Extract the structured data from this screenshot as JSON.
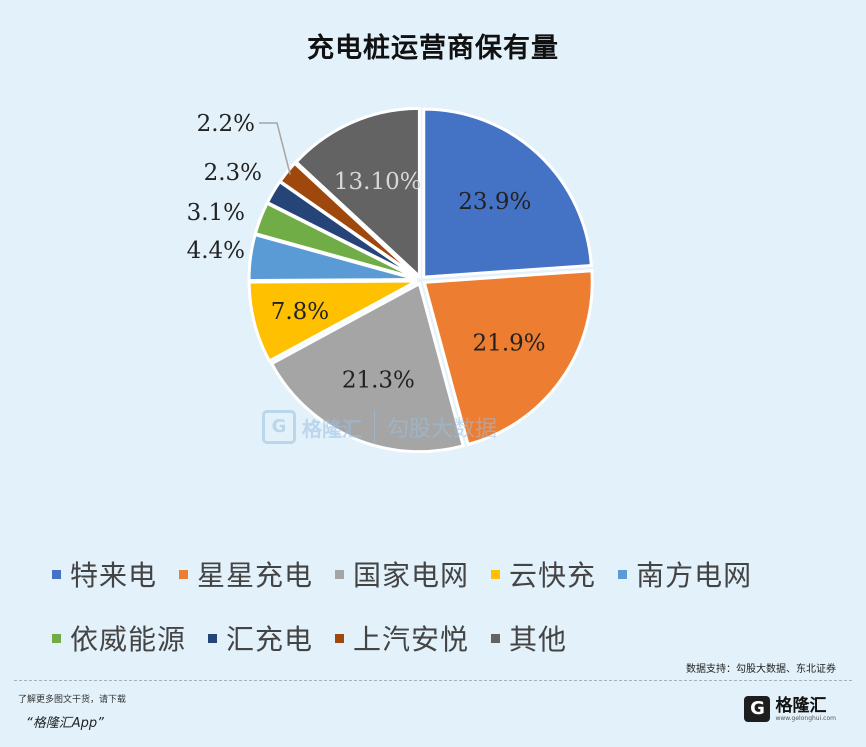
{
  "title": "充电桩运营商保有量",
  "chart_data": {
    "type": "pie",
    "title": "充电桩运营商保有量",
    "slices": [
      {
        "name": "特来电",
        "value": 23.9,
        "label": "23.9%",
        "color": "#4472c4"
      },
      {
        "name": "星星充电",
        "value": 21.9,
        "label": "21.9%",
        "color": "#ed7d31"
      },
      {
        "name": "国家电网",
        "value": 21.3,
        "label": "21.3%",
        "color": "#a5a5a5"
      },
      {
        "name": "云快充",
        "value": 7.8,
        "label": "7.8%",
        "color": "#ffc000"
      },
      {
        "name": "南方电网",
        "value": 4.4,
        "label": "4.4%",
        "color": "#5b9bd5"
      },
      {
        "name": "依威能源",
        "value": 3.1,
        "label": "3.1%",
        "color": "#70ad47"
      },
      {
        "name": "汇充电",
        "value": 2.3,
        "label": "2.3%",
        "color": "#264478"
      },
      {
        "name": "上汽安悦",
        "value": 2.2,
        "label": "2.2%",
        "color": "#9e480e"
      },
      {
        "name": "其他",
        "value": 13.1,
        "label": "13.10%",
        "color": "#636363"
      }
    ],
    "legend_position": "bottom"
  },
  "legend_rows": [
    [
      {
        "label": "特来电",
        "color": "#4472c4"
      },
      {
        "label": "星星充电",
        "color": "#ed7d31"
      },
      {
        "label": "国家电网",
        "color": "#a5a5a5"
      },
      {
        "label": "云快充",
        "color": "#ffc000"
      },
      {
        "label": "南方电网",
        "color": "#5b9bd5"
      }
    ],
    [
      {
        "label": "依威能源",
        "color": "#70ad47"
      },
      {
        "label": "汇充电",
        "color": "#264478"
      },
      {
        "label": "上汽安悦",
        "color": "#9e480e"
      },
      {
        "label": "其他",
        "color": "#636363"
      }
    ]
  ],
  "source": "数据支持：勾股大数据、东北证券",
  "promo": {
    "line1": "了解更多图文干货，请下载",
    "line2": "“格隆汇App”"
  },
  "logo": {
    "mark": "G",
    "name": "格隆汇",
    "domain": "www.gelonghui.com"
  },
  "watermark": {
    "mark": "G",
    "text1": "格隆汇",
    "text2": "勾股大数据"
  }
}
